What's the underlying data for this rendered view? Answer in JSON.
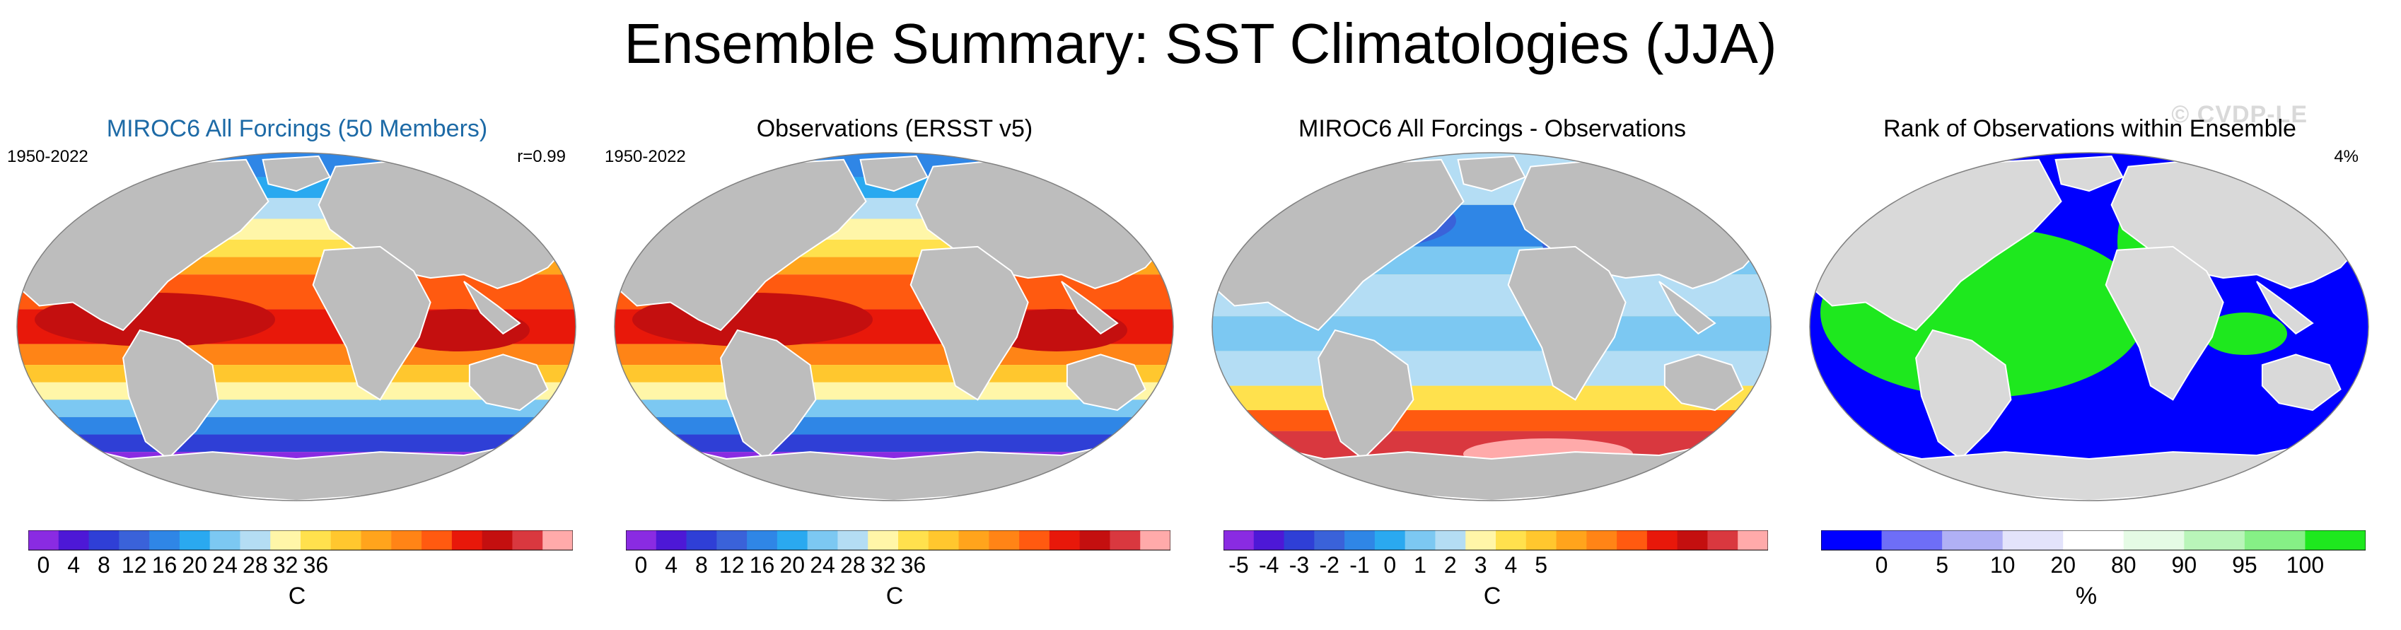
{
  "title": "Ensemble Summary: SST Climatologies (JJA)",
  "watermark": "© CVDP-LE",
  "panels": [
    {
      "title": "MIROC6 All Forcings (50 Members)",
      "title_color": "#1d6aa6",
      "period": "1950-2022",
      "stat": "r=0.99",
      "field": "sst",
      "colorbar": {
        "colors": [
          "#8a2be2",
          "#4d18d6",
          "#2f3fd6",
          "#3a62d9",
          "#2f86e6",
          "#2aa9f0",
          "#7cc8f2",
          "#b4ddf4",
          "#fff6a8",
          "#ffe14d",
          "#ffc72e",
          "#ffa41c",
          "#ff8416",
          "#ff5a10",
          "#e8180a",
          "#c40f0f",
          "#d9383f",
          "#ffaaaa"
        ],
        "tick_labels": [
          "0",
          "4",
          "8",
          "12",
          "16",
          "20",
          "24",
          "28",
          "32",
          "36"
        ],
        "unit": "C"
      }
    },
    {
      "title": "Observations (ERSST v5)",
      "title_color": "#000000",
      "period": "1950-2022",
      "stat": "",
      "field": "sst",
      "colorbar": {
        "colors": [
          "#8a2be2",
          "#4d18d6",
          "#2f3fd6",
          "#3a62d9",
          "#2f86e6",
          "#2aa9f0",
          "#7cc8f2",
          "#b4ddf4",
          "#fff6a8",
          "#ffe14d",
          "#ffc72e",
          "#ffa41c",
          "#ff8416",
          "#ff5a10",
          "#e8180a",
          "#c40f0f",
          "#d9383f",
          "#ffaaaa"
        ],
        "tick_labels": [
          "0",
          "4",
          "8",
          "12",
          "16",
          "20",
          "24",
          "28",
          "32",
          "36"
        ],
        "unit": "C"
      }
    },
    {
      "title": "MIROC6 All Forcings - Observations",
      "title_color": "#000000",
      "period": "",
      "stat": "",
      "field": "diff",
      "colorbar": {
        "colors": [
          "#8a2be2",
          "#4d18d6",
          "#2f3fd6",
          "#3a62d9",
          "#2f86e6",
          "#2aa9f0",
          "#7cc8f2",
          "#b4ddf4",
          "#fff6a8",
          "#ffe14d",
          "#ffc72e",
          "#ffa41c",
          "#ff8416",
          "#ff5a10",
          "#e8180a",
          "#c40f0f",
          "#d9383f",
          "#ffaaaa"
        ],
        "tick_labels": [
          "-5",
          "-4",
          "-3",
          "-2",
          "-1",
          "0",
          "1",
          "2",
          "3",
          "4",
          "5"
        ],
        "unit": "C"
      }
    },
    {
      "title": "Rank of Observations within Ensemble",
      "title_color": "#000000",
      "period": "",
      "stat": "4%",
      "field": "rank",
      "colorbar": {
        "colors": [
          "#0000ff",
          "#6e6ef7",
          "#b0b0f5",
          "#e3e3fb",
          "#ffffff",
          "#e5fbe5",
          "#b9f5b9",
          "#86f086",
          "#1ee81e"
        ],
        "tick_labels": [
          "0",
          "5",
          "10",
          "20",
          "80",
          "90",
          "95",
          "100"
        ],
        "unit": "%"
      }
    }
  ]
}
